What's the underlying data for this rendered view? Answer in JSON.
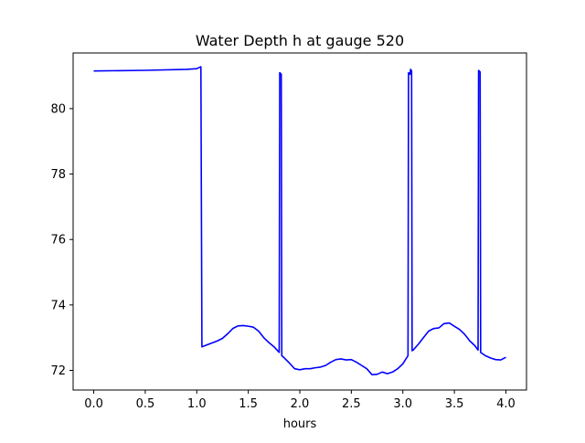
{
  "chart_data": {
    "type": "line",
    "title": "Water Depth h at gauge 520",
    "xlabel": "hours",
    "ylabel": "",
    "xlim": [
      -0.2,
      4.2
    ],
    "ylim": [
      71.4,
      81.7
    ],
    "xticks": [
      0.0,
      0.5,
      1.0,
      1.5,
      2.0,
      2.5,
      3.0,
      3.5,
      4.0
    ],
    "xtick_labels": [
      "0.0",
      "0.5",
      "1.0",
      "1.5",
      "2.0",
      "2.5",
      "3.0",
      "3.5",
      "4.0"
    ],
    "yticks": [
      72,
      74,
      76,
      78,
      80
    ],
    "ytick_labels": [
      "72",
      "74",
      "76",
      "78",
      "80"
    ],
    "grid": false,
    "series": [
      {
        "name": "",
        "color": "#0000ff",
        "points": [
          [
            0.0,
            81.15
          ],
          [
            0.5,
            81.17
          ],
          [
            0.9,
            81.2
          ],
          [
            1.0,
            81.22
          ],
          [
            1.04,
            81.28
          ],
          [
            1.05,
            72.72
          ],
          [
            1.1,
            72.78
          ],
          [
            1.2,
            72.9
          ],
          [
            1.25,
            72.98
          ],
          [
            1.3,
            73.12
          ],
          [
            1.35,
            73.28
          ],
          [
            1.4,
            73.36
          ],
          [
            1.45,
            73.37
          ],
          [
            1.5,
            73.35
          ],
          [
            1.55,
            73.32
          ],
          [
            1.6,
            73.2
          ],
          [
            1.65,
            73.0
          ],
          [
            1.7,
            72.85
          ],
          [
            1.75,
            72.72
          ],
          [
            1.8,
            72.55
          ],
          [
            1.805,
            81.1
          ],
          [
            1.82,
            81.05
          ],
          [
            1.825,
            72.45
          ],
          [
            1.85,
            72.38
          ],
          [
            1.9,
            72.22
          ],
          [
            1.95,
            72.05
          ],
          [
            2.0,
            72.02
          ],
          [
            2.05,
            72.05
          ],
          [
            2.1,
            72.05
          ],
          [
            2.15,
            72.08
          ],
          [
            2.2,
            72.1
          ],
          [
            2.25,
            72.15
          ],
          [
            2.3,
            72.25
          ],
          [
            2.35,
            72.33
          ],
          [
            2.4,
            72.35
          ],
          [
            2.45,
            72.32
          ],
          [
            2.5,
            72.33
          ],
          [
            2.55,
            72.25
          ],
          [
            2.6,
            72.15
          ],
          [
            2.65,
            72.05
          ],
          [
            2.7,
            71.87
          ],
          [
            2.75,
            71.88
          ],
          [
            2.8,
            71.95
          ],
          [
            2.85,
            71.9
          ],
          [
            2.9,
            71.95
          ],
          [
            2.95,
            72.05
          ],
          [
            3.0,
            72.2
          ],
          [
            3.05,
            72.45
          ],
          [
            3.055,
            81.1
          ],
          [
            3.07,
            81.05
          ],
          [
            3.075,
            81.2
          ],
          [
            3.085,
            81.15
          ],
          [
            3.09,
            72.6
          ],
          [
            3.1,
            72.62
          ],
          [
            3.15,
            72.8
          ],
          [
            3.2,
            73.0
          ],
          [
            3.25,
            73.2
          ],
          [
            3.3,
            73.28
          ],
          [
            3.35,
            73.3
          ],
          [
            3.4,
            73.43
          ],
          [
            3.45,
            73.45
          ],
          [
            3.5,
            73.35
          ],
          [
            3.55,
            73.25
          ],
          [
            3.6,
            73.1
          ],
          [
            3.65,
            72.9
          ],
          [
            3.7,
            72.75
          ],
          [
            3.73,
            72.62
          ],
          [
            3.735,
            81.17
          ],
          [
            3.75,
            81.12
          ],
          [
            3.755,
            72.55
          ],
          [
            3.8,
            72.45
          ],
          [
            3.85,
            72.38
          ],
          [
            3.9,
            72.33
          ],
          [
            3.95,
            72.32
          ],
          [
            4.0,
            72.4
          ]
        ]
      }
    ]
  }
}
